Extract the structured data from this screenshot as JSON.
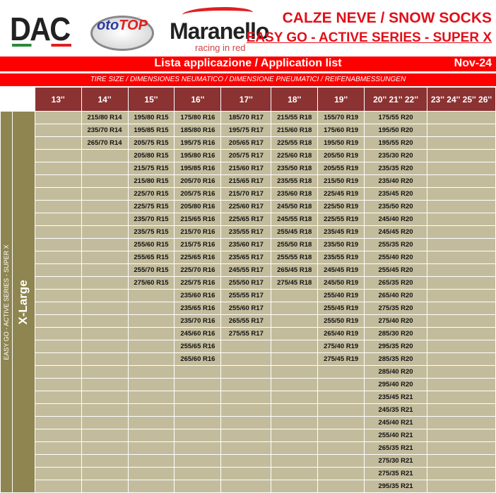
{
  "logos": {
    "dac": "DAC",
    "ototop_top": "ITALY",
    "ototop": "otoTOP",
    "maranello": "Maranello",
    "maranello_sub": "racing in red"
  },
  "header": {
    "title": "CALZE NEVE / SNOW SOCKS",
    "subtitle": "EASY GO - ACTIVE SERIES - SUPER X"
  },
  "banner": {
    "title": "Lista applicazione / Application list",
    "date": "Nov-24",
    "sub": "TIRE SIZE  /  DIMENSIONES NEUMATICO  /  DIMENSIONE PNEUMATICI  /  REIFENABMESSUNGEN"
  },
  "colors": {
    "red": "#ff0000",
    "header_cell": "#8b3232",
    "cell": "#c3bc9c",
    "side": "#8f8550"
  },
  "side": {
    "series": "EASY GO - ACTIVE SERIES - SUPER X",
    "size": "X-Large"
  },
  "columns": [
    "13''",
    "14''",
    "15''",
    "16''",
    "17''",
    "18''",
    "19''",
    "20'' 21'' 22''",
    "23'' 24'' 25'' 26''"
  ],
  "data": [
    [],
    [
      "215/80 R14",
      "235/70 R14",
      "265/70 R14"
    ],
    [
      "195/80 R15",
      "195/85 R15",
      "205/75 R15",
      "205/80 R15",
      "215/75 R15",
      "215/80 R15",
      "225/70 R15",
      "225/75 R15",
      "235/70 R15",
      "235/75 R15",
      "255/60 R15",
      "255/65 R15",
      "255/70 R15",
      "275/60 R15"
    ],
    [
      "175/80 R16",
      "185/80 R16",
      "195/75 R16",
      "195/80 R16",
      "195/85 R16",
      "205/70 R16",
      "205/75 R16",
      "205/80 R16",
      "215/65 R16",
      "215/70 R16",
      "215/75 R16",
      "225/65 R16",
      "225/70 R16",
      "225/75 R16",
      "235/60 R16",
      "235/65 R16",
      "235/70 R16",
      "245/60 R16",
      "255/65 R16",
      "265/60 R16"
    ],
    [
      "185/70 R17",
      "195/75 R17",
      "205/65 R17",
      "205/75 R17",
      "215/60 R17",
      "215/65 R17",
      "215/70 R17",
      "225/60 R17",
      "225/65 R17",
      "235/55 R17",
      "235/60 R17",
      "235/65 R17",
      "245/55 R17",
      "255/50 R17",
      "255/55 R17",
      "255/60 R17",
      "265/55 R17",
      "275/55 R17"
    ],
    [
      "215/55 R18",
      "215/60 R18",
      "225/55 R18",
      "225/60 R18",
      "235/50 R18",
      "235/55 R18",
      "235/60 R18",
      "245/50 R18",
      "245/55 R18",
      "255/45 R18",
      "255/50 R18",
      "255/55 R18",
      "265/45 R18",
      "275/45 R18"
    ],
    [
      "155/70 R19",
      "175/60 R19",
      "195/50 R19",
      "205/50 R19",
      "205/55 R19",
      "215/50 R19",
      "225/45 R19",
      "225/50 R19",
      "225/55 R19",
      "235/45 R19",
      "235/50 R19",
      "235/55 R19",
      "245/45 R19",
      "245/50 R19",
      "255/40 R19",
      "255/45 R19",
      "255/50 R19",
      "265/40 R19",
      "275/40 R19",
      "275/45 R19"
    ],
    [
      "175/55 R20",
      "195/50 R20",
      "195/55 R20",
      "235/30 R20",
      "235/35 R20",
      "235/40 R20",
      "235/45 R20",
      "235/50 R20",
      "245/40 R20",
      "245/45 R20",
      "255/35 R20",
      "255/40 R20",
      "255/45 R20",
      "265/35 R20",
      "265/40 R20",
      "275/35 R20",
      "275/40 R20",
      "285/30 R20",
      "295/35 R20",
      "285/35 R20",
      "285/40 R20",
      "295/40 R20",
      "235/45 R21",
      "245/35 R21",
      "245/40 R21",
      "255/40 R21",
      "265/35 R21",
      "275/30 R21",
      "275/35 R21",
      "295/35 R21"
    ],
    []
  ]
}
